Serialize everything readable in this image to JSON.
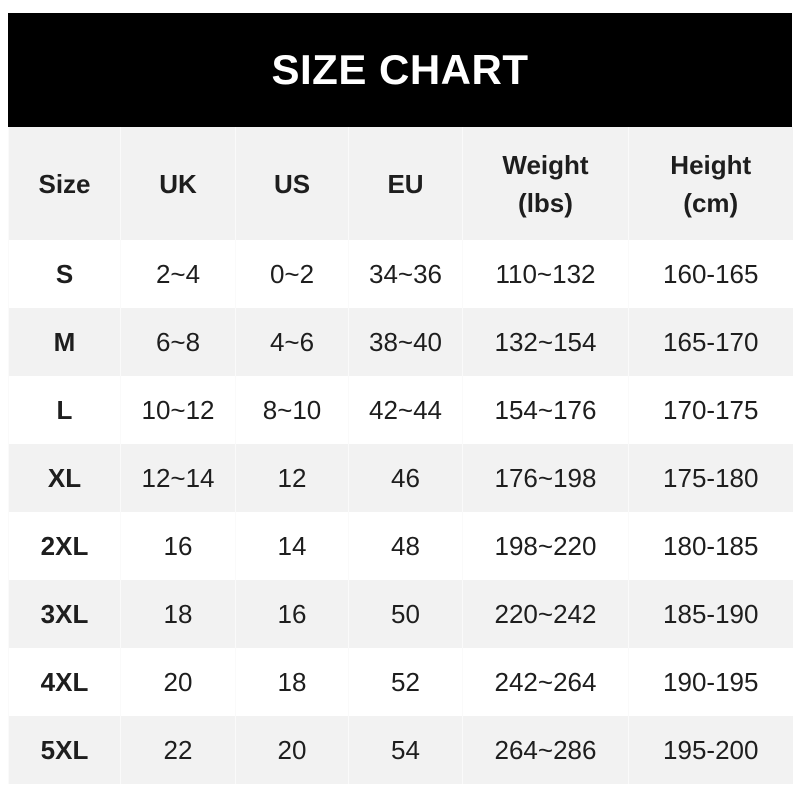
{
  "title": "SIZE CHART",
  "headers": [
    "Size",
    "UK",
    "US",
    "EU",
    "Weight\n(lbs)",
    "Height\n(cm)"
  ],
  "header_lines": [
    [
      "Size"
    ],
    [
      "UK"
    ],
    [
      "US"
    ],
    [
      "EU"
    ],
    [
      "Weight",
      "(lbs)"
    ],
    [
      "Height",
      "(cm)"
    ]
  ],
  "rows": [
    [
      "S",
      "2~4",
      "0~2",
      "34~36",
      "110~132",
      "160-165"
    ],
    [
      "M",
      "6~8",
      "4~6",
      "38~40",
      "132~154",
      "165-170"
    ],
    [
      "L",
      "10~12",
      "8~10",
      "42~44",
      "154~176",
      "170-175"
    ],
    [
      "XL",
      "12~14",
      "12",
      "46",
      "176~198",
      "175-180"
    ],
    [
      "2XL",
      "16",
      "14",
      "48",
      "198~220",
      "180-185"
    ],
    [
      "3XL",
      "18",
      "16",
      "50",
      "220~242",
      "185-190"
    ],
    [
      "4XL",
      "20",
      "18",
      "52",
      "242~264",
      "190-195"
    ],
    [
      "5XL",
      "22",
      "20",
      "54",
      "264~286",
      "195-200"
    ]
  ],
  "colors": {
    "banner": "#000000",
    "stripe": "#f2f2f2",
    "text": "#1e1e1e"
  }
}
